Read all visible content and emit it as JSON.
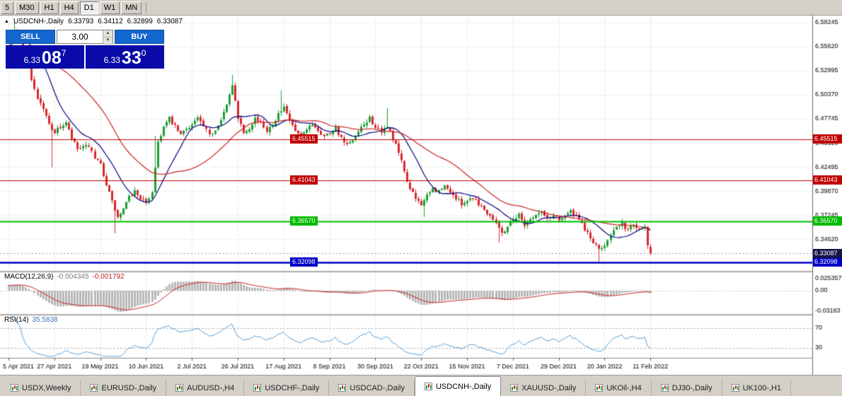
{
  "toolbar": {
    "items": [
      "5",
      "M30",
      "H1",
      "H4",
      "D1",
      "W1",
      "MN"
    ],
    "active_index": 4
  },
  "symbol_header": {
    "collapse_icon": "▲",
    "symbol": "USDCNH-,Daily",
    "open": "6.33793",
    "high": "6.34112",
    "low": "6.32899",
    "close": "6.33087"
  },
  "one_click": {
    "sell": "SELL",
    "buy": "BUY",
    "volume": "3.00",
    "spin_up": "▲",
    "spin_down": "▼",
    "bid": {
      "small": "6.33",
      "big": "08",
      "sup": "7"
    },
    "ask": {
      "small": "6.33",
      "big": "33",
      "sup": "0"
    }
  },
  "indicator_labels": {
    "macd": "MACD(12,26,9)",
    "macd_main": "-0.004345",
    "macd_signal": "-0.001792",
    "rsi": "RSI(14)",
    "rsi_value": "35.5838"
  },
  "tabs": {
    "items": [
      "USDX,Weekly",
      "EURUSD-,Daily",
      "AUDUSD-,H4",
      "USDCHF-,Daily",
      "USDCAD-,Daily",
      "USDCNH-,Daily",
      "XAUUSD-,Daily",
      "UKOil-,H4",
      "DJ30-,Daily",
      "UK100-,H1"
    ],
    "active_index": 5
  },
  "chart_data": {
    "type": "candlestick",
    "symbol": "USDCNH-,Daily",
    "y_range": [
      6.3125,
      6.59
    ],
    "y_ticks": [
      "6.58245",
      "6.55620",
      "6.52995",
      "6.50370",
      "6.47745",
      "6.45120",
      "6.42495",
      "6.39870",
      "6.37245",
      "6.34620",
      "6.31995"
    ],
    "x_ticks": [
      {
        "day": 0,
        "label": "5 Apr 2021"
      },
      {
        "day": 16,
        "label": "27 Apr 2021"
      },
      {
        "day": 32,
        "label": "19 May 2021"
      },
      {
        "day": 48,
        "label": "10 Jun 2021"
      },
      {
        "day": 64,
        "label": "2 Jul 2021"
      },
      {
        "day": 80,
        "label": "26 Jul 2021"
      },
      {
        "day": 96,
        "label": "17 Aug 2021"
      },
      {
        "day": 112,
        "label": "8 Sep 2021"
      },
      {
        "day": 128,
        "label": "30 Sep 2021"
      },
      {
        "day": 144,
        "label": "22 Oct 2021"
      },
      {
        "day": 160,
        "label": "15 Nov 2021"
      },
      {
        "day": 176,
        "label": "7 Dec 2021"
      },
      {
        "day": 192,
        "label": "29 Dec 2021"
      },
      {
        "day": 208,
        "label": "20 Jan 2022"
      },
      {
        "day": 224,
        "label": "11 Feb 2022"
      }
    ],
    "levels": [
      {
        "price": 6.45515,
        "label": "6.45515",
        "color": "#c00000",
        "width": 1
      },
      {
        "price": 6.41043,
        "label": "6.41043",
        "color": "#c00000",
        "width": 1
      },
      {
        "price": 6.3657,
        "label": "6.36570",
        "color": "#00bb00",
        "width": 2
      },
      {
        "price": 6.32098,
        "label": "6.32098",
        "color": "#0000c8",
        "width": 2.5
      }
    ],
    "current": {
      "price": 6.33087,
      "label": "6.33087",
      "color": "#15154a"
    },
    "last_candle": {
      "o": 6.33793,
      "h": 6.34112,
      "l": 6.32899,
      "c": 6.33087
    },
    "candle_colors": {
      "up": "#1d9e33",
      "down": "#d6282e"
    },
    "ma": [
      {
        "period": 13,
        "color": "#000080"
      },
      {
        "period": 34,
        "color": "#cc2222"
      }
    ],
    "macd": {
      "params": [
        12,
        26,
        9
      ],
      "axis": [
        "0.025357",
        "0.00",
        "-0.03183"
      ],
      "hist_color": "#b8b8b8",
      "signal_color": "#cc2222"
    },
    "rsi": {
      "period": 14,
      "levels": [
        70,
        30
      ],
      "color": "#55a0d8",
      "last": 35.5838
    },
    "price_path": [
      [
        0,
        6.566
      ],
      [
        2,
        6.5755
      ],
      [
        4,
        6.5655
      ],
      [
        6,
        6.5445
      ],
      [
        8,
        6.521
      ],
      [
        10,
        6.5
      ],
      [
        12,
        6.4885
      ],
      [
        14,
        6.4715
      ],
      [
        16,
        6.4625
      ],
      [
        18,
        6.4685
      ],
      [
        20,
        6.4725
      ],
      [
        22,
        6.4555
      ],
      [
        24,
        6.4445
      ],
      [
        26,
        6.4455
      ],
      [
        28,
        6.4485
      ],
      [
        30,
        6.4325
      ],
      [
        32,
        6.4275
      ],
      [
        34,
        6.4065
      ],
      [
        36,
        6.3865
      ],
      [
        38,
        6.3695
      ],
      [
        40,
        6.3785
      ],
      [
        42,
        6.3915
      ],
      [
        44,
        6.3985
      ],
      [
        46,
        6.3915
      ],
      [
        48,
        6.3845
      ],
      [
        50,
        6.3985
      ],
      [
        51,
        6.4245
      ],
      [
        52,
        6.4525
      ],
      [
        54,
        6.4685
      ],
      [
        56,
        6.4775
      ],
      [
        58,
        6.4685
      ],
      [
        60,
        6.4595
      ],
      [
        62,
        6.4675
      ],
      [
        64,
        6.4715
      ],
      [
        66,
        6.4785
      ],
      [
        68,
        6.4685
      ],
      [
        70,
        6.4595
      ],
      [
        72,
        6.4655
      ],
      [
        74,
        6.4785
      ],
      [
        76,
        6.4915
      ],
      [
        78,
        6.5135
      ],
      [
        79,
        6.4985
      ],
      [
        80,
        6.4795
      ],
      [
        82,
        6.4635
      ],
      [
        84,
        6.4685
      ],
      [
        86,
        6.4785
      ],
      [
        88,
        6.4725
      ],
      [
        90,
        6.4655
      ],
      [
        92,
        6.4725
      ],
      [
        94,
        6.4825
      ],
      [
        96,
        6.4885
      ],
      [
        98,
        6.4755
      ],
      [
        100,
        6.4635
      ],
      [
        102,
        6.4555
      ],
      [
        104,
        6.4655
      ],
      [
        106,
        6.4725
      ],
      [
        108,
        6.4655
      ],
      [
        110,
        6.4585
      ],
      [
        112,
        6.4625
      ],
      [
        114,
        6.4685
      ],
      [
        116,
        6.4555
      ],
      [
        118,
        6.4485
      ],
      [
        120,
        6.4525
      ],
      [
        122,
        6.4625
      ],
      [
        124,
        6.4705
      ],
      [
        126,
        6.4785
      ],
      [
        128,
        6.4685
      ],
      [
        130,
        6.4605
      ],
      [
        132,
        6.4705
      ],
      [
        134,
        6.4555
      ],
      [
        136,
        6.4405
      ],
      [
        138,
        6.4205
      ],
      [
        140,
        6.4005
      ],
      [
        142,
        6.3905
      ],
      [
        144,
        6.3855
      ],
      [
        146,
        6.3925
      ],
      [
        148,
        6.4005
      ],
      [
        150,
        6.3985
      ],
      [
        152,
        6.4035
      ],
      [
        154,
        6.3985
      ],
      [
        156,
        6.3905
      ],
      [
        158,
        6.3855
      ],
      [
        160,
        6.3885
      ],
      [
        162,
        6.3925
      ],
      [
        164,
        6.3855
      ],
      [
        166,
        6.3785
      ],
      [
        168,
        6.3725
      ],
      [
        170,
        6.3655
      ],
      [
        172,
        6.3525
      ],
      [
        174,
        6.3605
      ],
      [
        176,
        6.3685
      ],
      [
        178,
        6.3725
      ],
      [
        180,
        6.3625
      ],
      [
        182,
        6.3685
      ],
      [
        184,
        6.3725
      ],
      [
        186,
        6.3755
      ],
      [
        188,
        6.3685
      ],
      [
        190,
        6.3725
      ],
      [
        192,
        6.3685
      ],
      [
        194,
        6.3725
      ],
      [
        196,
        6.3765
      ],
      [
        198,
        6.3705
      ],
      [
        200,
        6.3625
      ],
      [
        202,
        6.3525
      ],
      [
        204,
        6.3425
      ],
      [
        206,
        6.3345
      ],
      [
        208,
        6.3405
      ],
      [
        210,
        6.3525
      ],
      [
        212,
        6.3585
      ],
      [
        214,
        6.3625
      ],
      [
        216,
        6.3565
      ],
      [
        218,
        6.3625
      ],
      [
        220,
        6.3585
      ],
      [
        222,
        6.3605
      ],
      [
        223,
        6.3395
      ],
      [
        224,
        6.33087
      ]
    ],
    "wick_events": [
      {
        "d": 2,
        "h": 6.5832
      },
      {
        "d": 15,
        "l": 6.4245
      },
      {
        "d": 37,
        "l": 6.3525
      },
      {
        "d": 51,
        "h": 6.459
      },
      {
        "d": 78,
        "h": 6.5255
      },
      {
        "d": 95,
        "h": 6.5085
      },
      {
        "d": 132,
        "h": 6.4895
      },
      {
        "d": 145,
        "l": 6.3705
      },
      {
        "d": 171,
        "l": 6.3425
      },
      {
        "d": 206,
        "l": 6.3215
      },
      {
        "d": 223,
        "l": 6.3355
      }
    ]
  }
}
